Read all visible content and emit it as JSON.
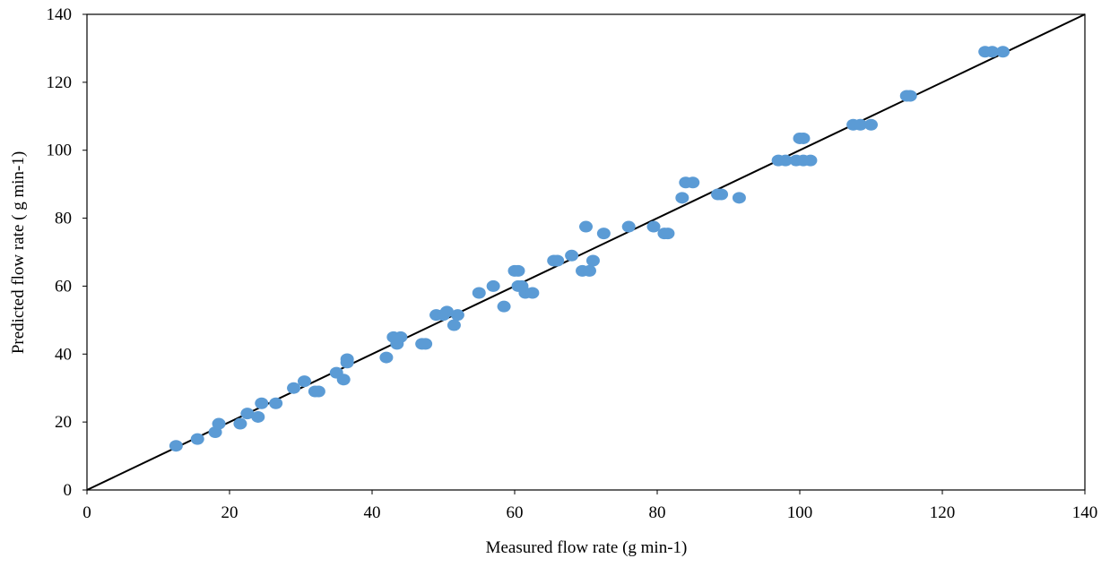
{
  "chart_data": {
    "type": "scatter",
    "title": "",
    "xlabel": "Measured flow rate (g min-1)",
    "ylabel": "Predicted flow rate ( g min-1)",
    "xlim": [
      0,
      140
    ],
    "ylim": [
      0,
      140
    ],
    "xticks": [
      0,
      20,
      40,
      60,
      80,
      100,
      120,
      140
    ],
    "yticks": [
      0,
      20,
      40,
      60,
      80,
      100,
      120,
      140
    ],
    "grid": false,
    "legend": "none",
    "marker_color": "#5b9bd5",
    "reference_line": {
      "type": "1:1",
      "color": "#000000",
      "from": [
        0,
        0
      ],
      "to": [
        140,
        140
      ]
    },
    "points": [
      {
        "x": 12.5,
        "y": 13.0
      },
      {
        "x": 15.5,
        "y": 15.0
      },
      {
        "x": 18.0,
        "y": 17.0
      },
      {
        "x": 18.5,
        "y": 19.5
      },
      {
        "x": 21.5,
        "y": 19.5
      },
      {
        "x": 22.5,
        "y": 22.5
      },
      {
        "x": 24.0,
        "y": 21.5
      },
      {
        "x": 24.5,
        "y": 25.5
      },
      {
        "x": 26.5,
        "y": 25.5
      },
      {
        "x": 29.0,
        "y": 30.0
      },
      {
        "x": 30.5,
        "y": 32.0
      },
      {
        "x": 32.0,
        "y": 29.0
      },
      {
        "x": 32.5,
        "y": 29.0
      },
      {
        "x": 35.0,
        "y": 34.5
      },
      {
        "x": 36.0,
        "y": 32.5
      },
      {
        "x": 36.5,
        "y": 38.5
      },
      {
        "x": 36.5,
        "y": 37.5
      },
      {
        "x": 42.0,
        "y": 39.0
      },
      {
        "x": 43.0,
        "y": 45.0
      },
      {
        "x": 43.5,
        "y": 43.0
      },
      {
        "x": 44.0,
        "y": 45.0
      },
      {
        "x": 43.5,
        "y": 44.0
      },
      {
        "x": 47.0,
        "y": 43.0
      },
      {
        "x": 47.5,
        "y": 43.0
      },
      {
        "x": 49.0,
        "y": 51.5
      },
      {
        "x": 50.0,
        "y": 51.5
      },
      {
        "x": 50.5,
        "y": 52.5
      },
      {
        "x": 51.5,
        "y": 48.5
      },
      {
        "x": 52.0,
        "y": 51.5
      },
      {
        "x": 55.0,
        "y": 58.0
      },
      {
        "x": 57.0,
        "y": 60.0
      },
      {
        "x": 58.5,
        "y": 54.0
      },
      {
        "x": 60.0,
        "y": 64.5
      },
      {
        "x": 60.5,
        "y": 64.5
      },
      {
        "x": 60.5,
        "y": 60.0
      },
      {
        "x": 61.0,
        "y": 60.0
      },
      {
        "x": 61.5,
        "y": 58.0
      },
      {
        "x": 62.5,
        "y": 58.0
      },
      {
        "x": 65.5,
        "y": 67.5
      },
      {
        "x": 66.0,
        "y": 67.5
      },
      {
        "x": 68.0,
        "y": 69.0
      },
      {
        "x": 69.5,
        "y": 64.5
      },
      {
        "x": 70.5,
        "y": 64.5
      },
      {
        "x": 70.0,
        "y": 77.5
      },
      {
        "x": 71.0,
        "y": 67.5
      },
      {
        "x": 72.5,
        "y": 75.5
      },
      {
        "x": 76.0,
        "y": 77.5
      },
      {
        "x": 79.5,
        "y": 77.5
      },
      {
        "x": 81.0,
        "y": 75.5
      },
      {
        "x": 81.5,
        "y": 75.5
      },
      {
        "x": 83.5,
        "y": 86.0
      },
      {
        "x": 84.0,
        "y": 90.5
      },
      {
        "x": 85.0,
        "y": 90.5
      },
      {
        "x": 88.5,
        "y": 87.0
      },
      {
        "x": 89.0,
        "y": 87.0
      },
      {
        "x": 91.5,
        "y": 86.0
      },
      {
        "x": 97.0,
        "y": 97.0
      },
      {
        "x": 98.0,
        "y": 97.0
      },
      {
        "x": 99.5,
        "y": 97.0
      },
      {
        "x": 100.0,
        "y": 103.5
      },
      {
        "x": 100.5,
        "y": 103.5
      },
      {
        "x": 100.5,
        "y": 97.0
      },
      {
        "x": 101.5,
        "y": 97.0
      },
      {
        "x": 107.5,
        "y": 107.5
      },
      {
        "x": 108.5,
        "y": 107.5
      },
      {
        "x": 110.0,
        "y": 107.5
      },
      {
        "x": 115.0,
        "y": 116.0
      },
      {
        "x": 115.5,
        "y": 116.0
      },
      {
        "x": 126.0,
        "y": 129.0
      },
      {
        "x": 127.0,
        "y": 129.0
      },
      {
        "x": 128.5,
        "y": 129.0
      }
    ]
  }
}
